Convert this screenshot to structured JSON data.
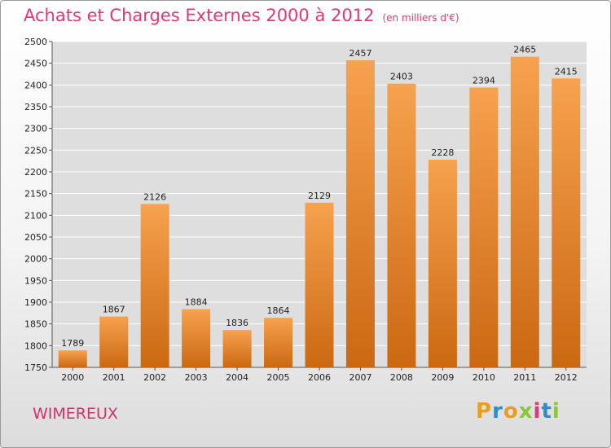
{
  "header": {
    "title": "Achats et Charges Externes 2000 à 2012",
    "subtitle": "(en milliers d'€)"
  },
  "footer": {
    "commune": "WIMEREUX",
    "logo_letters": [
      "P",
      "r",
      "o",
      "x",
      "i",
      "t",
      "i"
    ],
    "logo_colors": [
      "#e8a01c",
      "#2f8ec8",
      "#e8a01c",
      "#8cc63f",
      "#e4367a",
      "#2f8ec8",
      "#8cc63f"
    ]
  },
  "chart_data": {
    "type": "bar",
    "categories": [
      "2000",
      "2001",
      "2002",
      "2003",
      "2004",
      "2005",
      "2006",
      "2007",
      "2008",
      "2009",
      "2010",
      "2011",
      "2012"
    ],
    "values": [
      1789,
      1867,
      2126,
      1884,
      1836,
      1864,
      2129,
      2457,
      2403,
      2228,
      2394,
      2465,
      2415
    ],
    "ylim": [
      1750,
      2500
    ],
    "yticks": [
      1750,
      1800,
      1850,
      1900,
      1950,
      2000,
      2050,
      2100,
      2150,
      2200,
      2250,
      2300,
      2350,
      2400,
      2450,
      2500
    ],
    "grid": true,
    "bar_color_top": "#f6a24e",
    "bar_color_bottom": "#cc6812",
    "plot_background": "#dedede",
    "grid_color": "#ffffff"
  }
}
